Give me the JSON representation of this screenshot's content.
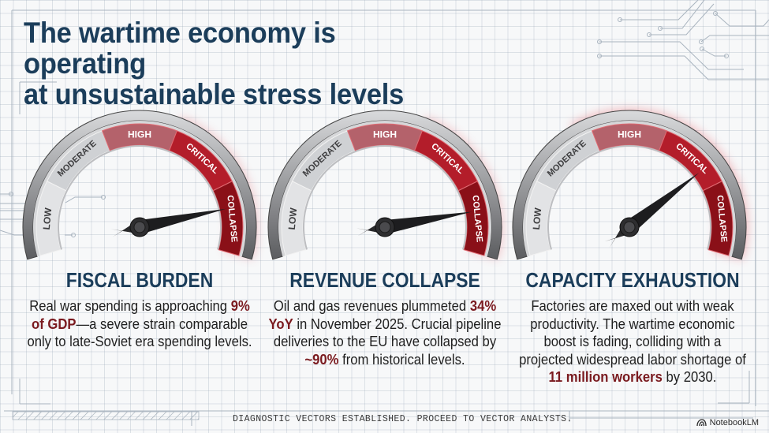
{
  "title": {
    "line1": "The wartime economy is operating",
    "line2": "at unsustainable stress levels"
  },
  "gauge_scale": {
    "segments": [
      "LOW",
      "MODERATE",
      "HIGH",
      "CRITICAL",
      "COLLAPSE"
    ],
    "segment_colors": [
      "#e2e3e5",
      "#cfd1d4",
      "#b4626b",
      "#b31d2a",
      "#8a1018"
    ]
  },
  "panels": [
    {
      "id": "fiscal-burden",
      "heading": "FISCAL BURDEN",
      "needle_level": "COLLAPSE",
      "needle_angle_deg": 12,
      "body": [
        {
          "text": "Real war spending is approaching ",
          "highlight": false
        },
        {
          "text": "9% of GDP",
          "highlight": true
        },
        {
          "text": "—a severe strain comparable only to late-Soviet era spending levels.",
          "highlight": false
        }
      ]
    },
    {
      "id": "revenue-collapse",
      "heading": "REVENUE COLLAPSE",
      "needle_level": "COLLAPSE",
      "needle_angle_deg": 10,
      "body": [
        {
          "text": "Oil and gas revenues plummeted ",
          "highlight": false
        },
        {
          "text": "34% YoY",
          "highlight": true
        },
        {
          "text": " in November 2025. Crucial pipeline deliveries to the EU have collapsed by ",
          "highlight": false
        },
        {
          "text": "~90%",
          "highlight": true
        },
        {
          "text": " from historical levels.",
          "highlight": false
        }
      ]
    },
    {
      "id": "capacity-exhaustion",
      "heading": "CAPACITY EXHAUSTION",
      "needle_level": "CRITICAL",
      "needle_angle_deg": 38,
      "body": [
        {
          "text": "Factories are maxed out with weak productivity. The wartime economic boost is fading, colliding with a projected widespread labor shortage of ",
          "highlight": false
        },
        {
          "text": "11 million workers",
          "highlight": true
        },
        {
          "text": " by 2030.",
          "highlight": false
        }
      ]
    }
  ],
  "footer": {
    "status_text": "DIAGNOSTIC VECTORS ESTABLISHED. PROCEED TO VECTOR ANALYSTS.",
    "brand": "NotebookLM"
  },
  "colors": {
    "title": "#1b3d5a",
    "highlight": "#7a1a1f",
    "body_text": "#1f1f1f",
    "grid": "#c3ccd5"
  }
}
